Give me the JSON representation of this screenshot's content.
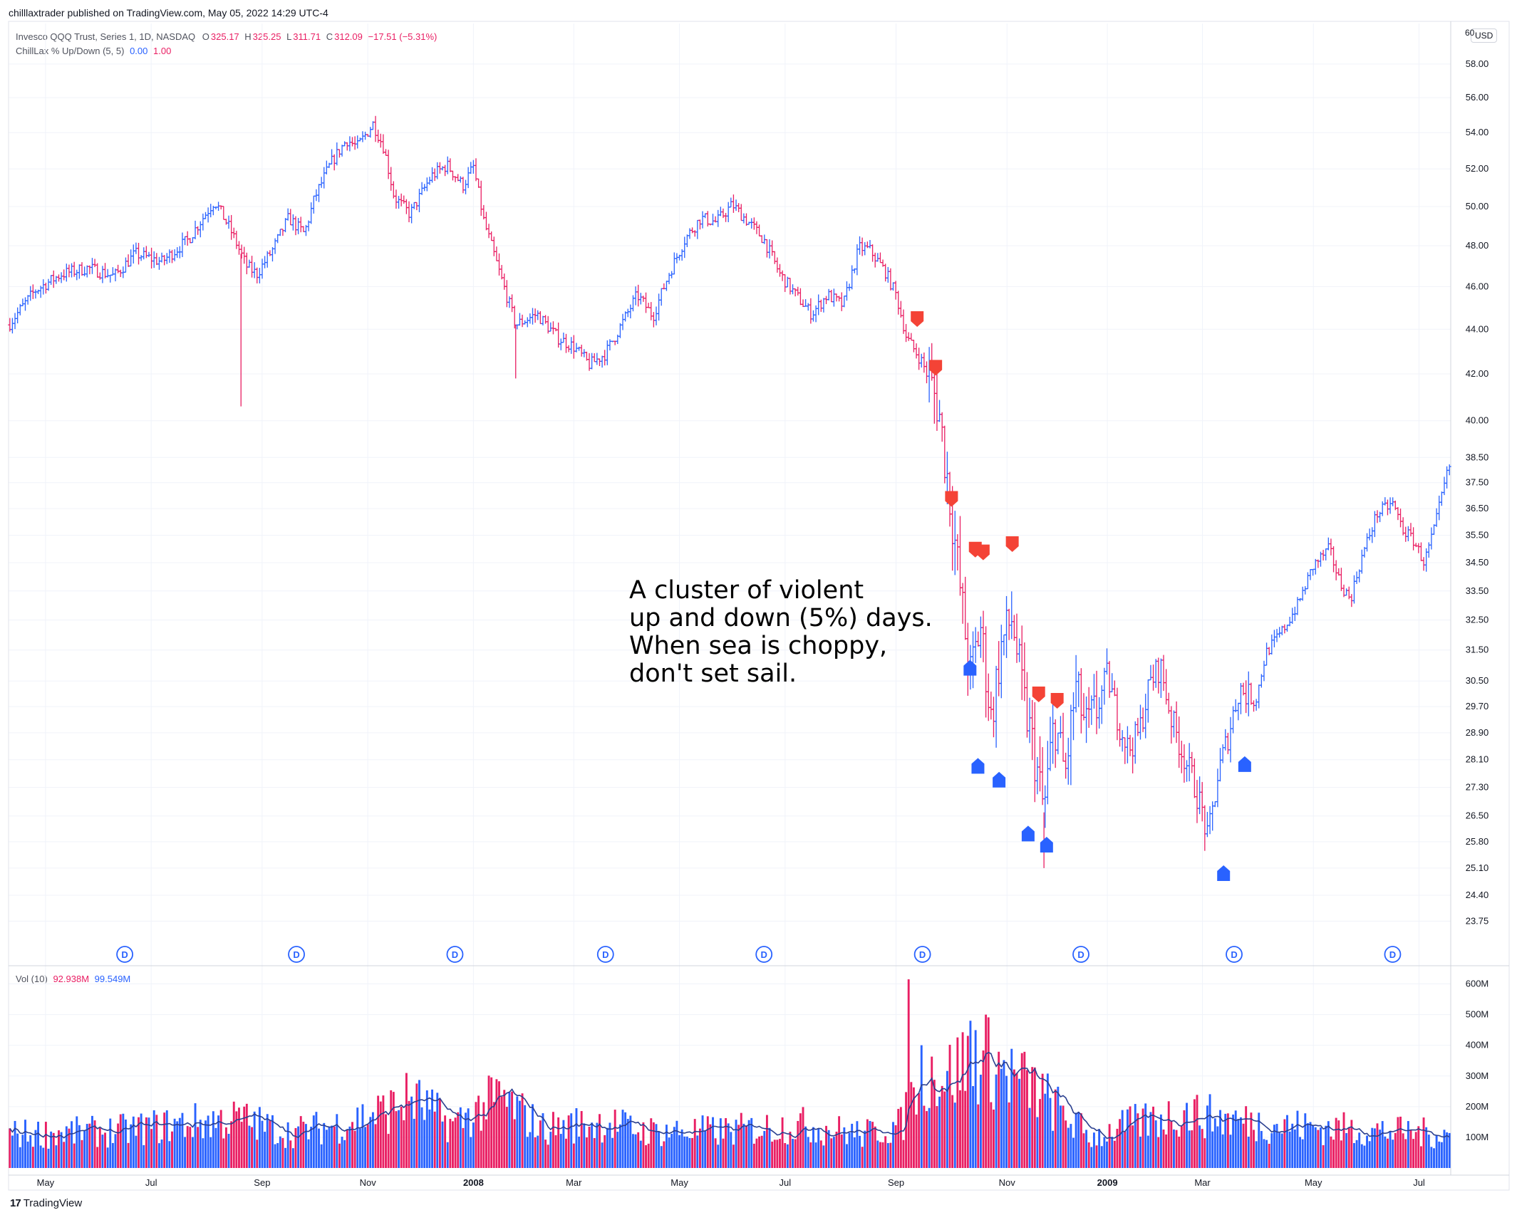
{
  "header": {
    "publish_line": "chilllaxtrader published on TradingView.com, May 05, 2022 14:29 UTC-4"
  },
  "legend": {
    "symbol": "Invesco QQQ Trust, Series 1, 1D, NASDAQ",
    "open_label": "O",
    "open": "325.17",
    "high_label": "H",
    "high": "325.25",
    "low_label": "L",
    "low": "311.71",
    "close_label": "C",
    "close": "312.09",
    "change": "−17.51 (−5.31%)",
    "indicator": "ChillLax % Up/Down (5, 5)",
    "indicator_val1": "0.00",
    "indicator_val2": "1.00",
    "volume_label": "Vol (10)",
    "volume_val1": "92.938M",
    "volume_val2": "99.549M"
  },
  "price_scale": {
    "currency": "USD",
    "top_label": "60"
  },
  "annotation": {
    "lines": [
      "A cluster of violent",
      "up and down (5%) days.",
      "When sea is choppy,",
      "don't set sail."
    ]
  },
  "footer": {
    "logo_mark": "17",
    "logo_text": "TradingView"
  },
  "colors": {
    "up": "#2962ff",
    "down": "#e91e63",
    "sell_marker": "#f44336",
    "buy_marker": "#2962ff",
    "grid": "#f0f3fa",
    "axis_text": "#131722",
    "ma_line": "#2a3f8f"
  },
  "chart_data": {
    "type": "ohlc",
    "title": "Invesco QQQ Trust, Series 1, 1D, NASDAQ",
    "x_domain": [
      0,
      27.3
    ],
    "x_unit": "months from 2007-04-20",
    "ylim": [
      23.2,
      60.5
    ],
    "y_scale": "log",
    "grid": true,
    "y_ticks": [
      "58.00",
      "56.00",
      "54.00",
      "52.00",
      "50.00",
      "48.00",
      "46.00",
      "44.00",
      "42.00",
      "40.00",
      "38.50",
      "37.50",
      "36.50",
      "35.50",
      "34.50",
      "33.50",
      "32.50",
      "31.50",
      "30.50",
      "29.70",
      "28.90",
      "28.10",
      "27.30",
      "26.50",
      "25.80",
      "25.10",
      "24.40",
      "23.75"
    ],
    "x_ticks": [
      {
        "label": "May",
        "t": 0.7
      },
      {
        "label": "Jul",
        "t": 2.7
      },
      {
        "label": "Sep",
        "t": 4.8
      },
      {
        "label": "Nov",
        "t": 6.8
      },
      {
        "label": "2008",
        "t": 8.8
      },
      {
        "label": "Mar",
        "t": 10.7
      },
      {
        "label": "May",
        "t": 12.7
      },
      {
        "label": "Jul",
        "t": 14.7
      },
      {
        "label": "Sep",
        "t": 16.8
      },
      {
        "label": "Nov",
        "t": 18.9
      },
      {
        "label": "2009",
        "t": 20.8
      },
      {
        "label": "Mar",
        "t": 22.6
      },
      {
        "label": "May",
        "t": 24.7
      },
      {
        "label": "Jul",
        "t": 26.7
      }
    ],
    "price_path": [
      [
        0.0,
        44.2
      ],
      [
        0.5,
        45.8
      ],
      [
        1.0,
        46.6
      ],
      [
        1.5,
        46.9
      ],
      [
        2.0,
        46.5
      ],
      [
        2.4,
        47.6
      ],
      [
        2.9,
        47.2
      ],
      [
        3.4,
        48.3
      ],
      [
        3.9,
        50.3
      ],
      [
        4.2,
        48.8
      ],
      [
        4.5,
        47.0
      ],
      [
        4.7,
        46.6
      ],
      [
        5.0,
        47.8
      ],
      [
        5.3,
        49.4
      ],
      [
        5.6,
        48.6
      ],
      [
        5.8,
        50.5
      ],
      [
        6.1,
        52.3
      ],
      [
        6.4,
        53.6
      ],
      [
        6.6,
        53.2
      ],
      [
        6.9,
        54.5
      ],
      [
        7.1,
        53.2
      ],
      [
        7.3,
        50.5
      ],
      [
        7.6,
        49.6
      ],
      [
        8.0,
        51.6
      ],
      [
        8.3,
        52.2
      ],
      [
        8.6,
        51.1
      ],
      [
        8.8,
        52.1
      ],
      [
        9.0,
        49.2
      ],
      [
        9.3,
        46.6
      ],
      [
        9.6,
        44.2
      ],
      [
        10.0,
        44.7
      ],
      [
        10.4,
        43.6
      ],
      [
        10.7,
        43.2
      ],
      [
        11.0,
        42.4
      ],
      [
        11.3,
        42.9
      ],
      [
        11.6,
        44.2
      ],
      [
        11.9,
        45.6
      ],
      [
        12.2,
        44.6
      ],
      [
        12.5,
        46.6
      ],
      [
        12.8,
        48.3
      ],
      [
        13.1,
        49.4
      ],
      [
        13.4,
        49.2
      ],
      [
        13.7,
        50.1
      ],
      [
        14.0,
        49.2
      ],
      [
        14.3,
        48.3
      ],
      [
        14.6,
        46.6
      ],
      [
        14.9,
        45.6
      ],
      [
        15.2,
        44.7
      ],
      [
        15.5,
        45.6
      ],
      [
        15.8,
        45.1
      ],
      [
        16.1,
        47.9
      ],
      [
        16.3,
        47.8
      ],
      [
        16.6,
        46.7
      ],
      [
        16.8,
        45.6
      ],
      [
        17.0,
        43.6
      ],
      [
        17.3,
        42.5
      ],
      [
        17.6,
        40.6
      ],
      [
        17.8,
        37.2
      ],
      [
        18.0,
        33.8
      ],
      [
        18.2,
        30.6
      ],
      [
        18.4,
        32.3
      ],
      [
        18.6,
        29.3
      ],
      [
        18.8,
        31.7
      ],
      [
        19.0,
        32.6
      ],
      [
        19.2,
        30.0
      ],
      [
        19.4,
        28.4
      ],
      [
        19.6,
        26.6
      ],
      [
        19.8,
        29.3
      ],
      [
        20.0,
        27.6
      ],
      [
        20.2,
        30.3
      ],
      [
        20.4,
        29.0
      ],
      [
        20.6,
        29.6
      ],
      [
        20.8,
        30.7
      ],
      [
        21.0,
        29.3
      ],
      [
        21.2,
        28.4
      ],
      [
        21.4,
        28.9
      ],
      [
        21.6,
        30.4
      ],
      [
        21.8,
        31.0
      ],
      [
        22.0,
        29.4
      ],
      [
        22.2,
        28.4
      ],
      [
        22.4,
        27.6
      ],
      [
        22.6,
        26.6
      ],
      [
        22.7,
        25.8
      ],
      [
        22.9,
        27.7
      ],
      [
        23.1,
        28.9
      ],
      [
        23.3,
        30.3
      ],
      [
        23.6,
        29.8
      ],
      [
        23.8,
        31.4
      ],
      [
        24.1,
        32.1
      ],
      [
        24.4,
        33.0
      ],
      [
        24.7,
        34.4
      ],
      [
        25.0,
        35.0
      ],
      [
        25.2,
        33.8
      ],
      [
        25.4,
        33.2
      ],
      [
        25.6,
        34.6
      ],
      [
        25.9,
        36.3
      ],
      [
        26.2,
        36.7
      ],
      [
        26.4,
        35.7
      ],
      [
        26.6,
        35.3
      ],
      [
        26.8,
        34.5
      ],
      [
        27.0,
        35.8
      ],
      [
        27.2,
        37.6
      ],
      [
        27.3,
        38.3
      ]
    ],
    "spikes": [
      {
        "t": 4.4,
        "low": 40.6
      },
      {
        "t": 9.6,
        "low": 41.8
      },
      {
        "t": 19.6,
        "low": 25.1
      }
    ],
    "sell_signals": [
      {
        "t": 17.2,
        "price": 44.5
      },
      {
        "t": 17.55,
        "price": 42.3
      },
      {
        "t": 17.85,
        "price": 36.9
      },
      {
        "t": 18.3,
        "price": 35.0
      },
      {
        "t": 18.45,
        "price": 34.9
      },
      {
        "t": 19.0,
        "price": 35.2
      },
      {
        "t": 19.5,
        "price": 30.1
      },
      {
        "t": 19.85,
        "price": 29.9
      }
    ],
    "buy_signals": [
      {
        "t": 18.2,
        "price": 30.9
      },
      {
        "t": 18.35,
        "price": 27.9
      },
      {
        "t": 18.75,
        "price": 27.5
      },
      {
        "t": 19.3,
        "price": 26.0
      },
      {
        "t": 19.65,
        "price": 25.7
      },
      {
        "t": 23.0,
        "price": 24.95
      },
      {
        "t": 23.4,
        "price": 27.95
      }
    ],
    "dividends": [
      {
        "t": 2.2,
        "label": "D"
      },
      {
        "t": 5.45,
        "label": "D"
      },
      {
        "t": 8.45,
        "label": "D"
      },
      {
        "t": 11.3,
        "label": "D"
      },
      {
        "t": 14.3,
        "label": "D"
      },
      {
        "t": 17.3,
        "label": "D"
      },
      {
        "t": 20.3,
        "label": "D"
      },
      {
        "t": 23.2,
        "label": "D"
      },
      {
        "t": 26.2,
        "label": "D"
      }
    ],
    "volume": {
      "ylim": [
        0,
        650
      ],
      "unit": "M",
      "y_ticks": [
        "600M",
        "500M",
        "400M",
        "300M",
        "200M",
        "100M"
      ],
      "baseline": [
        [
          0.0,
          110
        ],
        [
          2.0,
          120
        ],
        [
          3.6,
          150
        ],
        [
          4.4,
          160
        ],
        [
          5.3,
          115
        ],
        [
          6.2,
          140
        ],
        [
          7.2,
          190
        ],
        [
          7.6,
          230
        ],
        [
          8.4,
          140
        ],
        [
          9.3,
          230
        ],
        [
          10.1,
          130
        ],
        [
          11.3,
          150
        ],
        [
          12.0,
          120
        ],
        [
          13.5,
          120
        ],
        [
          15.0,
          140
        ],
        [
          16.2,
          110
        ],
        [
          16.9,
          140
        ],
        [
          17.3,
          320
        ],
        [
          17.8,
          300
        ],
        [
          18.3,
          370
        ],
        [
          18.8,
          320
        ],
        [
          19.4,
          260
        ],
        [
          20.0,
          170
        ],
        [
          20.5,
          100
        ],
        [
          21.2,
          140
        ],
        [
          22.3,
          180
        ],
        [
          23.0,
          160
        ],
        [
          24.0,
          140
        ],
        [
          26.0,
          120
        ],
        [
          27.3,
          110
        ]
      ],
      "peaks": [
        {
          "t": 17.05,
          "value": 615
        },
        {
          "t": 18.5,
          "value": 500
        },
        {
          "t": 18.2,
          "value": 480
        }
      ]
    }
  }
}
